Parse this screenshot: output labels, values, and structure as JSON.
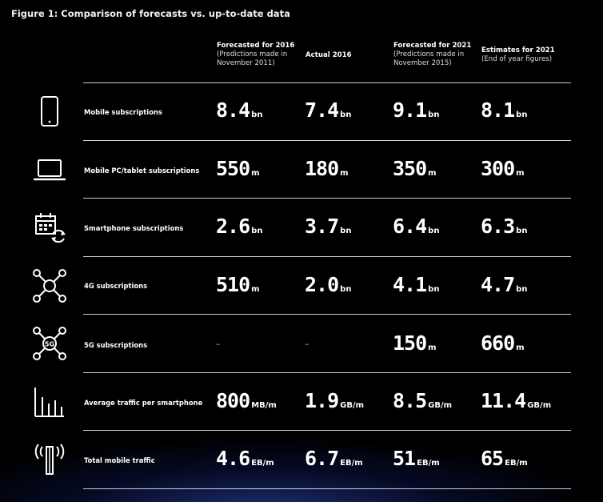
{
  "title": "Figure 1: Comparison of forecasts vs. up-to-date data",
  "columns": [
    {
      "head": "Forecasted for 2016",
      "sub1": "(Predictions made in",
      "sub2": "November 2011)"
    },
    {
      "head": "Actual 2016",
      "sub1": "",
      "sub2": ""
    },
    {
      "head": "Forecasted for 2021",
      "sub1": "(Predictions made in",
      "sub2": "November 2015)"
    },
    {
      "head": "Estimates for 2021",
      "sub1": "(End of year figures)",
      "sub2": ""
    }
  ],
  "rows": [
    {
      "label": "Mobile subscriptions",
      "icon": "smartphone-icon",
      "values": [
        {
          "n": "8.4",
          "u": "bn"
        },
        {
          "n": "7.4",
          "u": "bn"
        },
        {
          "n": "9.1",
          "u": "bn"
        },
        {
          "n": "8.1",
          "u": "bn"
        }
      ]
    },
    {
      "label": "Mobile PC/tablet subscriptions",
      "icon": "laptop-icon",
      "values": [
        {
          "n": "550",
          "u": "m"
        },
        {
          "n": "180",
          "u": "m"
        },
        {
          "n": "350",
          "u": "m"
        },
        {
          "n": "300",
          "u": "m"
        }
      ]
    },
    {
      "label": "Smartphone subscriptions",
      "icon": "calendar-sync-icon",
      "values": [
        {
          "n": "2.6",
          "u": "bn"
        },
        {
          "n": "3.7",
          "u": "bn"
        },
        {
          "n": "6.4",
          "u": "bn"
        },
        {
          "n": "6.3",
          "u": "bn"
        }
      ]
    },
    {
      "label": "4G subscriptions",
      "icon": "network-node-icon",
      "values": [
        {
          "n": "510",
          "u": "m"
        },
        {
          "n": "2.0",
          "u": "bn"
        },
        {
          "n": "4.1",
          "u": "bn"
        },
        {
          "n": "4.7",
          "u": "bn"
        }
      ]
    },
    {
      "label": "5G subscriptions",
      "icon": "5g-node-icon",
      "icon_text": "5G",
      "values": [
        {
          "n": "–",
          "u": ""
        },
        {
          "n": "–",
          "u": ""
        },
        {
          "n": "150",
          "u": "m"
        },
        {
          "n": "660",
          "u": "m"
        }
      ]
    },
    {
      "label": "Average traffic per smartphone",
      "icon": "bar-chart-icon",
      "values": [
        {
          "n": "800",
          "u": "MB/m"
        },
        {
          "n": "1.9",
          "u": "GB/m"
        },
        {
          "n": "8.5",
          "u": "GB/m"
        },
        {
          "n": "11.4",
          "u": "GB/m"
        }
      ]
    },
    {
      "label": "Total mobile traffic",
      "icon": "antenna-icon",
      "values": [
        {
          "n": "4.6",
          "u": "EB/m"
        },
        {
          "n": "6.7",
          "u": "EB/m"
        },
        {
          "n": "51",
          "u": "EB/m"
        },
        {
          "n": "65",
          "u": "EB/m"
        }
      ]
    }
  ]
}
